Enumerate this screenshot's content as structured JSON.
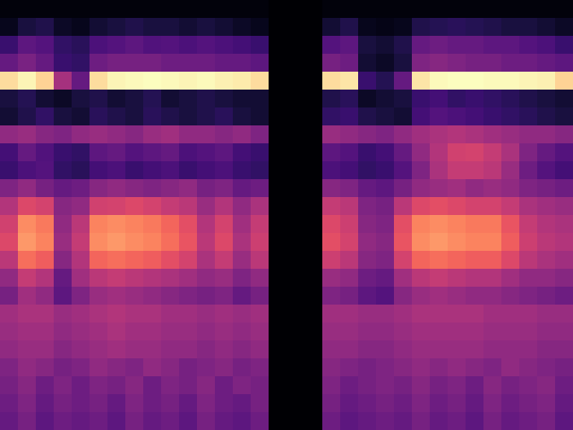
{
  "chart_data": {
    "type": "heatmap",
    "color": "magma",
    "tick_labels": false,
    "grid": false,
    "cells": [
      [
        0.03,
        0.03,
        0.03,
        0.03,
        0.03,
        0.03,
        0.03,
        0.03,
        0.03,
        0.03,
        0.03,
        0.03,
        0.03,
        0.03,
        0.03,
        0.01,
        0.01,
        0.01,
        0.03,
        0.03,
        0.03,
        0.03,
        0.03,
        0.03,
        0.03,
        0.03,
        0.03,
        0.03,
        0.03,
        0.03,
        0.03,
        0.03
      ],
      [
        0.06,
        0.12,
        0.14,
        0.08,
        0.06,
        0.1,
        0.12,
        0.14,
        0.12,
        0.12,
        0.1,
        0.12,
        0.1,
        0.08,
        0.06,
        0.01,
        0.01,
        0.01,
        0.1,
        0.14,
        0.06,
        0.05,
        0.06,
        0.14,
        0.15,
        0.16,
        0.15,
        0.14,
        0.12,
        0.12,
        0.1,
        0.08
      ],
      [
        0.2,
        0.28,
        0.26,
        0.18,
        0.16,
        0.24,
        0.26,
        0.28,
        0.25,
        0.26,
        0.24,
        0.26,
        0.24,
        0.22,
        0.2,
        0.01,
        0.01,
        0.01,
        0.26,
        0.28,
        0.12,
        0.1,
        0.14,
        0.3,
        0.32,
        0.3,
        0.3,
        0.28,
        0.28,
        0.26,
        0.24,
        0.2
      ],
      [
        0.3,
        0.35,
        0.3,
        0.2,
        0.18,
        0.32,
        0.34,
        0.34,
        0.34,
        0.32,
        0.32,
        0.32,
        0.3,
        0.3,
        0.28,
        0.01,
        0.01,
        0.01,
        0.34,
        0.32,
        0.1,
        0.08,
        0.12,
        0.36,
        0.38,
        0.36,
        0.34,
        0.34,
        0.32,
        0.32,
        0.3,
        0.28
      ],
      [
        0.9,
        0.95,
        0.88,
        0.45,
        0.3,
        0.9,
        0.95,
        0.96,
        0.97,
        0.96,
        0.95,
        0.96,
        0.94,
        0.93,
        0.9,
        0.01,
        0.01,
        0.01,
        0.9,
        0.92,
        0.2,
        0.15,
        0.3,
        0.92,
        0.96,
        0.97,
        0.97,
        0.96,
        0.96,
        0.95,
        0.94,
        0.88
      ],
      [
        0.12,
        0.15,
        0.1,
        0.08,
        0.12,
        0.14,
        0.1,
        0.12,
        0.15,
        0.1,
        0.12,
        0.14,
        0.12,
        0.1,
        0.1,
        0.01,
        0.01,
        0.01,
        0.14,
        0.16,
        0.08,
        0.1,
        0.12,
        0.2,
        0.22,
        0.18,
        0.2,
        0.18,
        0.16,
        0.14,
        0.12,
        0.1
      ],
      [
        0.1,
        0.14,
        0.18,
        0.12,
        0.1,
        0.16,
        0.14,
        0.12,
        0.16,
        0.14,
        0.12,
        0.14,
        0.16,
        0.12,
        0.1,
        0.01,
        0.01,
        0.01,
        0.18,
        0.2,
        0.14,
        0.12,
        0.1,
        0.22,
        0.26,
        0.24,
        0.22,
        0.2,
        0.18,
        0.16,
        0.14,
        0.12
      ],
      [
        0.4,
        0.42,
        0.38,
        0.36,
        0.4,
        0.42,
        0.4,
        0.38,
        0.42,
        0.44,
        0.4,
        0.4,
        0.38,
        0.4,
        0.36,
        0.01,
        0.01,
        0.01,
        0.42,
        0.4,
        0.38,
        0.36,
        0.4,
        0.44,
        0.46,
        0.48,
        0.46,
        0.44,
        0.42,
        0.4,
        0.4,
        0.38
      ],
      [
        0.22,
        0.3,
        0.25,
        0.2,
        0.18,
        0.28,
        0.3,
        0.26,
        0.28,
        0.3,
        0.24,
        0.26,
        0.28,
        0.22,
        0.2,
        0.01,
        0.01,
        0.01,
        0.28,
        0.26,
        0.2,
        0.22,
        0.3,
        0.4,
        0.48,
        0.55,
        0.56,
        0.52,
        0.46,
        0.36,
        0.3,
        0.26
      ],
      [
        0.2,
        0.24,
        0.26,
        0.18,
        0.16,
        0.22,
        0.24,
        0.2,
        0.22,
        0.24,
        0.2,
        0.22,
        0.24,
        0.2,
        0.18,
        0.01,
        0.01,
        0.01,
        0.24,
        0.22,
        0.18,
        0.2,
        0.26,
        0.36,
        0.46,
        0.52,
        0.52,
        0.5,
        0.42,
        0.32,
        0.26,
        0.22
      ],
      [
        0.36,
        0.4,
        0.34,
        0.3,
        0.32,
        0.38,
        0.4,
        0.38,
        0.36,
        0.38,
        0.4,
        0.34,
        0.36,
        0.3,
        0.32,
        0.01,
        0.01,
        0.01,
        0.38,
        0.36,
        0.3,
        0.28,
        0.34,
        0.4,
        0.42,
        0.44,
        0.4,
        0.42,
        0.4,
        0.36,
        0.34,
        0.32
      ],
      [
        0.48,
        0.58,
        0.56,
        0.38,
        0.4,
        0.55,
        0.56,
        0.58,
        0.56,
        0.52,
        0.5,
        0.42,
        0.48,
        0.4,
        0.46,
        0.01,
        0.01,
        0.01,
        0.52,
        0.5,
        0.36,
        0.34,
        0.5,
        0.58,
        0.6,
        0.58,
        0.56,
        0.56,
        0.52,
        0.46,
        0.44,
        0.42
      ],
      [
        0.55,
        0.74,
        0.7,
        0.4,
        0.5,
        0.72,
        0.74,
        0.72,
        0.7,
        0.66,
        0.6,
        0.48,
        0.56,
        0.44,
        0.52,
        0.01,
        0.01,
        0.01,
        0.58,
        0.54,
        0.38,
        0.36,
        0.6,
        0.72,
        0.74,
        0.72,
        0.7,
        0.7,
        0.62,
        0.52,
        0.48,
        0.46
      ],
      [
        0.58,
        0.76,
        0.72,
        0.42,
        0.52,
        0.74,
        0.76,
        0.74,
        0.72,
        0.68,
        0.62,
        0.5,
        0.58,
        0.46,
        0.54,
        0.01,
        0.01,
        0.01,
        0.6,
        0.56,
        0.4,
        0.38,
        0.62,
        0.74,
        0.76,
        0.74,
        0.72,
        0.72,
        0.64,
        0.54,
        0.5,
        0.48
      ],
      [
        0.5,
        0.68,
        0.64,
        0.38,
        0.48,
        0.66,
        0.68,
        0.66,
        0.64,
        0.6,
        0.56,
        0.46,
        0.52,
        0.42,
        0.5,
        0.01,
        0.01,
        0.01,
        0.54,
        0.5,
        0.38,
        0.36,
        0.56,
        0.66,
        0.68,
        0.66,
        0.64,
        0.64,
        0.58,
        0.5,
        0.46,
        0.44
      ],
      [
        0.4,
        0.52,
        0.48,
        0.3,
        0.44,
        0.5,
        0.52,
        0.5,
        0.48,
        0.46,
        0.44,
        0.4,
        0.42,
        0.36,
        0.4,
        0.01,
        0.01,
        0.01,
        0.42,
        0.4,
        0.32,
        0.3,
        0.44,
        0.5,
        0.52,
        0.5,
        0.48,
        0.48,
        0.44,
        0.4,
        0.4,
        0.38
      ],
      [
        0.34,
        0.44,
        0.4,
        0.28,
        0.36,
        0.42,
        0.44,
        0.42,
        0.4,
        0.38,
        0.36,
        0.34,
        0.36,
        0.3,
        0.34,
        0.01,
        0.01,
        0.01,
        0.36,
        0.34,
        0.28,
        0.26,
        0.38,
        0.42,
        0.44,
        0.42,
        0.4,
        0.4,
        0.38,
        0.36,
        0.34,
        0.32
      ],
      [
        0.44,
        0.46,
        0.46,
        0.42,
        0.44,
        0.46,
        0.48,
        0.46,
        0.46,
        0.44,
        0.44,
        0.42,
        0.44,
        0.42,
        0.44,
        0.01,
        0.01,
        0.01,
        0.44,
        0.44,
        0.42,
        0.42,
        0.44,
        0.46,
        0.46,
        0.46,
        0.46,
        0.44,
        0.44,
        0.44,
        0.42,
        0.42
      ],
      [
        0.42,
        0.44,
        0.44,
        0.4,
        0.42,
        0.44,
        0.46,
        0.44,
        0.44,
        0.42,
        0.42,
        0.4,
        0.42,
        0.4,
        0.42,
        0.01,
        0.01,
        0.01,
        0.42,
        0.42,
        0.4,
        0.4,
        0.42,
        0.44,
        0.44,
        0.44,
        0.44,
        0.42,
        0.42,
        0.42,
        0.4,
        0.4
      ],
      [
        0.4,
        0.42,
        0.42,
        0.38,
        0.4,
        0.42,
        0.44,
        0.42,
        0.42,
        0.4,
        0.4,
        0.38,
        0.4,
        0.38,
        0.4,
        0.01,
        0.01,
        0.01,
        0.4,
        0.4,
        0.38,
        0.38,
        0.4,
        0.42,
        0.42,
        0.42,
        0.42,
        0.4,
        0.4,
        0.4,
        0.38,
        0.38
      ],
      [
        0.36,
        0.4,
        0.38,
        0.34,
        0.36,
        0.4,
        0.38,
        0.36,
        0.4,
        0.38,
        0.34,
        0.36,
        0.38,
        0.34,
        0.36,
        0.01,
        0.01,
        0.01,
        0.38,
        0.36,
        0.34,
        0.36,
        0.38,
        0.4,
        0.38,
        0.4,
        0.38,
        0.36,
        0.4,
        0.38,
        0.36,
        0.34
      ],
      [
        0.34,
        0.38,
        0.32,
        0.36,
        0.32,
        0.36,
        0.34,
        0.38,
        0.32,
        0.36,
        0.34,
        0.38,
        0.32,
        0.36,
        0.34,
        0.01,
        0.01,
        0.01,
        0.36,
        0.32,
        0.34,
        0.36,
        0.34,
        0.38,
        0.34,
        0.36,
        0.32,
        0.38,
        0.34,
        0.36,
        0.38,
        0.32
      ],
      [
        0.32,
        0.36,
        0.3,
        0.34,
        0.32,
        0.34,
        0.3,
        0.36,
        0.32,
        0.34,
        0.3,
        0.36,
        0.32,
        0.3,
        0.34,
        0.01,
        0.01,
        0.01,
        0.34,
        0.3,
        0.32,
        0.34,
        0.32,
        0.36,
        0.32,
        0.34,
        0.3,
        0.36,
        0.32,
        0.34,
        0.36,
        0.3
      ],
      [
        0.3,
        0.34,
        0.28,
        0.32,
        0.3,
        0.32,
        0.28,
        0.34,
        0.3,
        0.32,
        0.28,
        0.34,
        0.3,
        0.28,
        0.32,
        0.01,
        0.01,
        0.01,
        0.32,
        0.28,
        0.3,
        0.32,
        0.3,
        0.34,
        0.3,
        0.32,
        0.28,
        0.34,
        0.3,
        0.32,
        0.34,
        0.28
      ]
    ]
  }
}
